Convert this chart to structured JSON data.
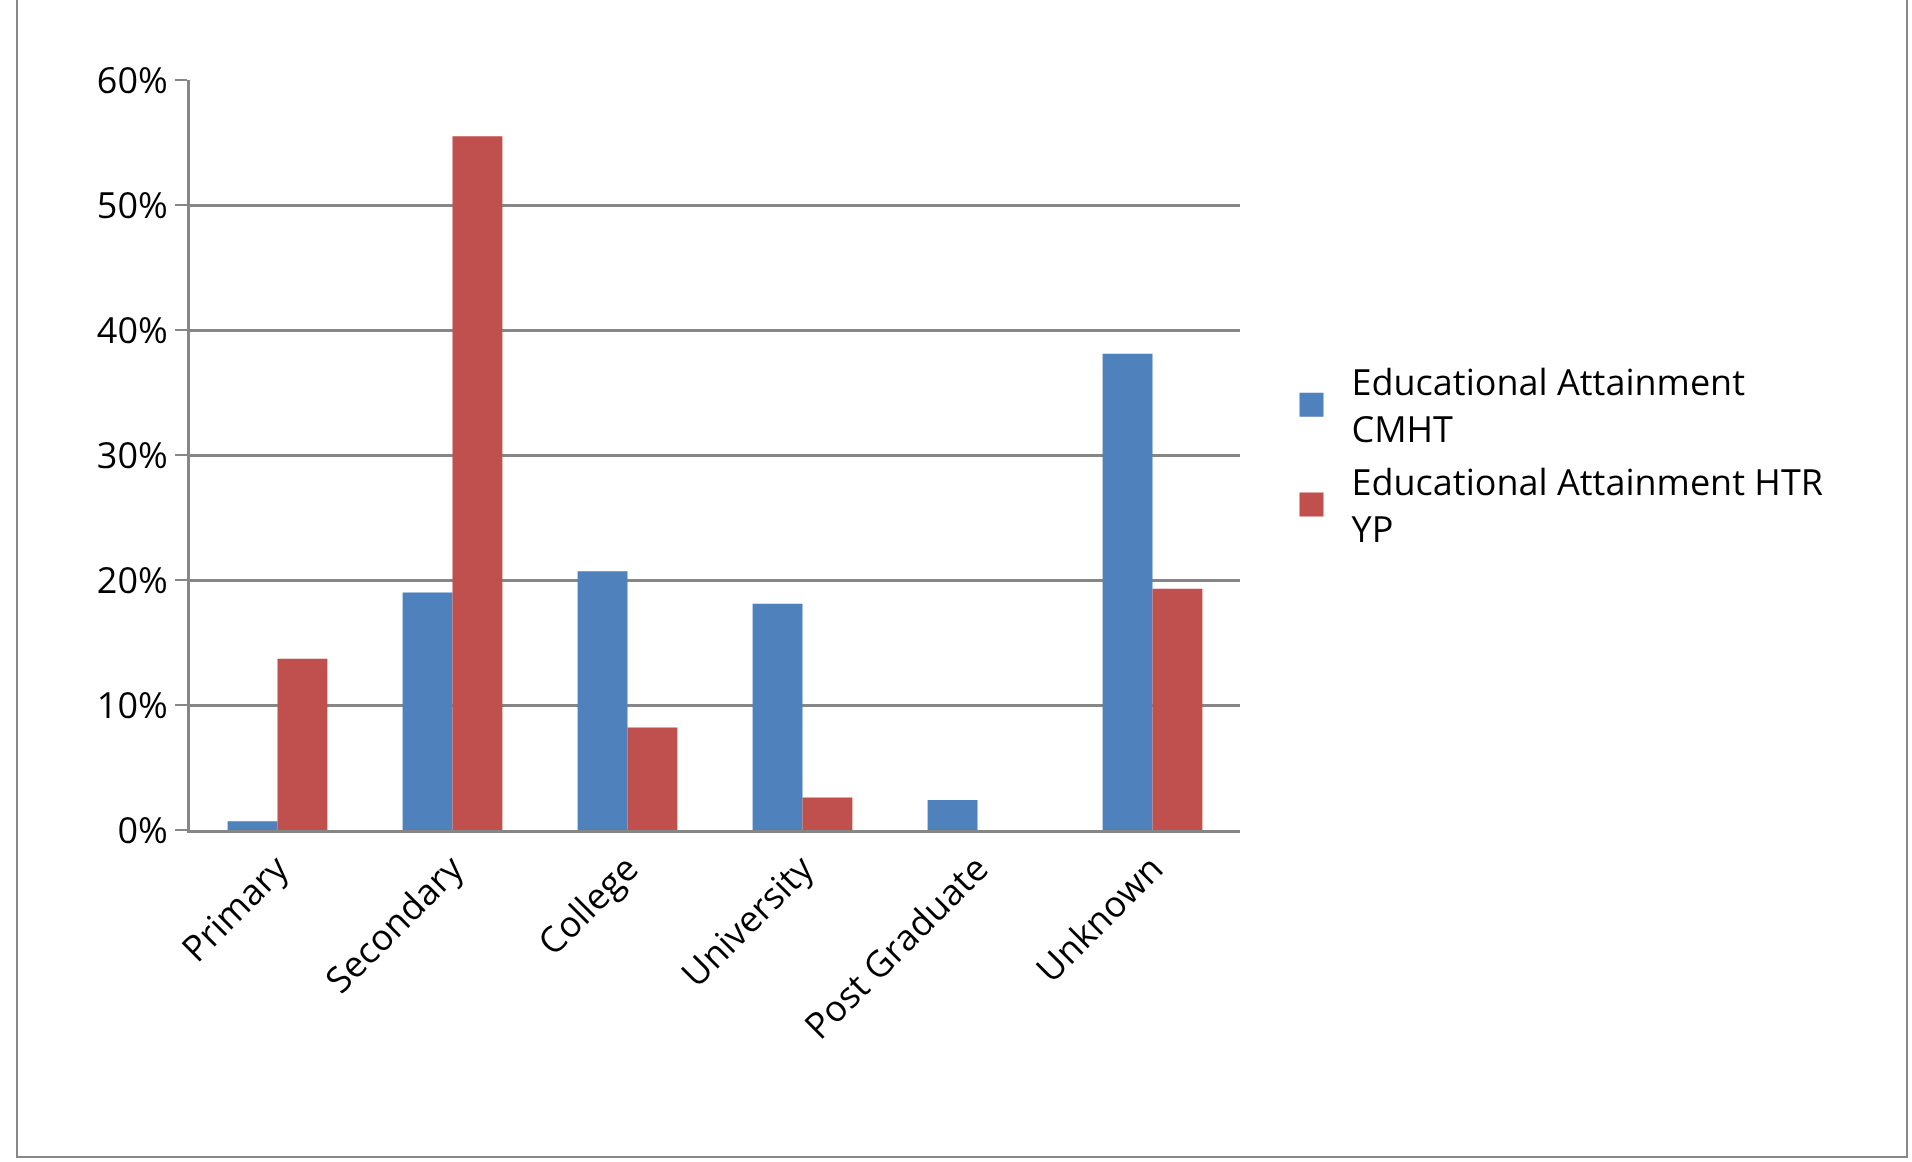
{
  "chart_data": {
    "type": "bar",
    "categories": [
      "Primary",
      "Secondary",
      "College",
      "University",
      "Post Graduate",
      "Unknown"
    ],
    "series": [
      {
        "name": "Educational Attainment CMHT",
        "color": "#4f81bd",
        "values": [
          0.7,
          19.0,
          20.7,
          18.1,
          2.4,
          38.1
        ]
      },
      {
        "name": "Educational Attainment HTR YP",
        "color": "#c0504d",
        "values": [
          13.7,
          55.5,
          8.2,
          2.6,
          0,
          19.3
        ]
      }
    ],
    "ylim": [
      0,
      60
    ],
    "yticks": [
      {
        "value": 0,
        "label": "0%"
      },
      {
        "value": 10,
        "label": "10%"
      },
      {
        "value": 20,
        "label": "20%"
      },
      {
        "value": 30,
        "label": "30%"
      },
      {
        "value": 40,
        "label": "40%"
      },
      {
        "value": 50,
        "label": "50%"
      },
      {
        "value": 60,
        "label": "60%"
      }
    ],
    "grid": "y",
    "legend": "right"
  }
}
